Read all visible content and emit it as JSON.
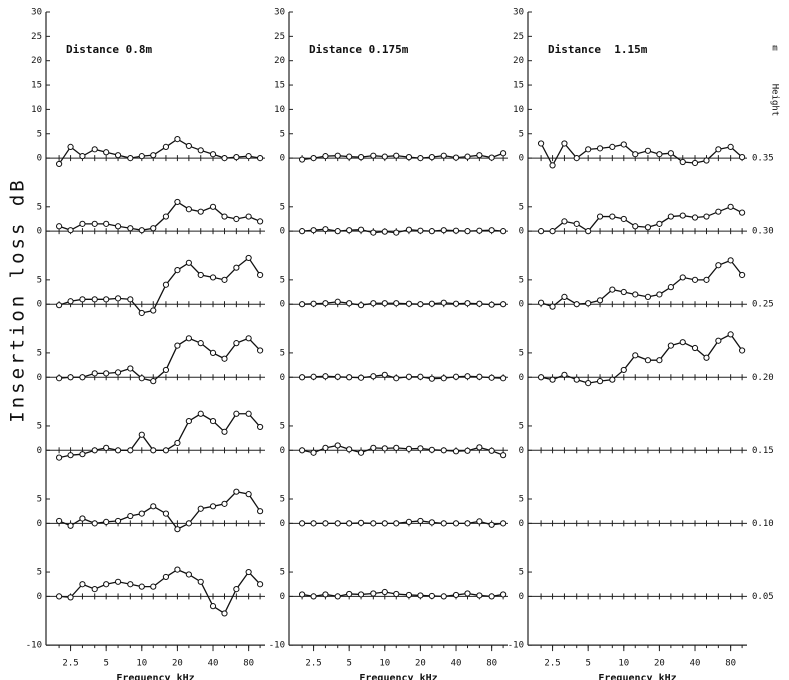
{
  "chart_data": [
    {
      "type": "line",
      "title": "Distance 0.8m",
      "xlabel": "Frequency kHz",
      "ylabel": "Insertion loss dB",
      "log_x": true,
      "x": [
        2,
        2.5,
        3.15,
        4,
        5,
        6.3,
        8,
        10,
        12.5,
        16,
        20,
        25,
        31.5,
        40,
        50,
        63,
        80,
        100
      ],
      "xlim": [
        1.55,
        110
      ],
      "xticks": [
        2.5,
        5,
        10,
        20,
        40,
        80
      ],
      "series": [
        {
          "color": "#111",
          "ylim": [
            -5,
            30
          ],
          "yticks": [
            0,
            5,
            10,
            15,
            20,
            25,
            30
          ],
          "values": [
            -1.2,
            2.3,
            0.4,
            1.8,
            1.2,
            0.6,
            0,
            0.4,
            0.6,
            2.3,
            3.9,
            2.5,
            1.6,
            0.8,
            0,
            0.2,
            0.4,
            0
          ]
        },
        {
          "color": "#111",
          "ylim": [
            -5,
            10
          ],
          "yticks": [
            0,
            5
          ],
          "values": [
            1,
            0.2,
            1.5,
            1.5,
            1.5,
            1,
            0.6,
            0.2,
            0.6,
            3,
            6,
            4.5,
            4,
            5,
            3,
            2.5,
            3,
            2
          ]
        },
        {
          "color": "#111",
          "ylim": [
            -5,
            10
          ],
          "yticks": [
            0,
            5
          ],
          "values": [
            -0.2,
            0.6,
            1,
            1,
            1,
            1.2,
            1,
            -1.8,
            -1.3,
            4,
            7,
            8.5,
            6,
            5.5,
            5,
            7.5,
            9.5,
            6
          ]
        },
        {
          "color": "#111",
          "ylim": [
            -5,
            10
          ],
          "yticks": [
            0,
            5
          ],
          "values": [
            -0.2,
            0,
            0,
            0.8,
            0.8,
            1,
            1.8,
            -0.2,
            -0.8,
            1.5,
            6.5,
            8,
            7,
            5,
            3.8,
            7,
            8,
            5.5
          ]
        },
        {
          "color": "#111",
          "ylim": [
            -5,
            10
          ],
          "yticks": [
            0,
            5
          ],
          "values": [
            -1.5,
            -1,
            -0.8,
            0,
            0.5,
            0,
            0,
            3.2,
            0,
            0,
            1.5,
            6,
            7.5,
            6,
            3.8,
            7.5,
            7.5,
            4.8
          ]
        },
        {
          "color": "#111",
          "ylim": [
            -5,
            10
          ],
          "yticks": [
            0,
            5
          ],
          "values": [
            0.5,
            -0.5,
            1,
            0,
            0.3,
            0.5,
            1.5,
            2,
            3.5,
            2,
            -1.2,
            0,
            3,
            3.5,
            4,
            6.5,
            6,
            2.5
          ]
        },
        {
          "color": "#111",
          "ylim": [
            -10,
            10
          ],
          "yticks": [
            -10,
            0,
            5
          ],
          "values": [
            0,
            -0.2,
            2.5,
            1.5,
            2.5,
            3,
            2.5,
            2,
            2,
            4,
            5.5,
            4.5,
            3,
            -2,
            -3.5,
            1.5,
            5,
            2.5
          ]
        }
      ]
    },
    {
      "type": "line",
      "title": "Distance 0.175m",
      "xlabel": "Frequency kHz",
      "log_x": true,
      "x": [
        2,
        2.5,
        3.15,
        4,
        5,
        6.3,
        8,
        10,
        12.5,
        16,
        20,
        25,
        31.5,
        40,
        50,
        63,
        80,
        100
      ],
      "xlim": [
        1.55,
        110
      ],
      "xticks": [
        2.5,
        5,
        10,
        20,
        40,
        80
      ],
      "series": [
        {
          "color": "#111",
          "ylim": [
            -5,
            30
          ],
          "yticks": [
            0,
            5,
            10,
            15,
            20,
            25,
            30
          ],
          "values": [
            -0.3,
            0,
            0.4,
            0.5,
            0.3,
            0.2,
            0.5,
            0.3,
            0.5,
            0.2,
            0,
            0.2,
            0.5,
            0.1,
            0.3,
            0.6,
            0.1,
            1
          ]
        },
        {
          "color": "#111",
          "ylim": [
            -5,
            10
          ],
          "yticks": [
            0,
            5
          ],
          "values": [
            0,
            0.2,
            0.4,
            0,
            0.2,
            0.3,
            -0.3,
            -0.1,
            -0.3,
            0.3,
            0.1,
            0,
            0.2,
            0.1,
            0,
            0.1,
            0.2,
            0
          ]
        },
        {
          "color": "#111",
          "ylim": [
            -5,
            10
          ],
          "yticks": [
            0,
            5
          ],
          "values": [
            0,
            0.1,
            0.2,
            0.5,
            0.2,
            -0.2,
            0.2,
            0.2,
            0.2,
            0.1,
            0,
            0.1,
            0.3,
            0.1,
            0.2,
            0.1,
            -0.1,
            0
          ]
        },
        {
          "color": "#111",
          "ylim": [
            -5,
            10
          ],
          "yticks": [
            0,
            5
          ],
          "values": [
            0,
            0.1,
            0.2,
            0.1,
            0,
            -0.1,
            0.2,
            0.5,
            -0.2,
            0.1,
            0.1,
            -0.3,
            -0.2,
            0.1,
            0.2,
            0.1,
            -0.1,
            -0.2
          ]
        },
        {
          "color": "#111",
          "ylim": [
            -5,
            10
          ],
          "yticks": [
            0,
            5
          ],
          "values": [
            0,
            -0.5,
            0.5,
            1,
            0.2,
            -0.5,
            0.5,
            0.4,
            0.5,
            0.3,
            0.4,
            0.1,
            0,
            -0.2,
            -0.1,
            0.6,
            -0.1,
            -1
          ]
        },
        {
          "color": "#111",
          "ylim": [
            -5,
            10
          ],
          "yticks": [
            0,
            5
          ],
          "values": [
            0,
            0,
            0,
            0,
            0,
            0.1,
            0,
            0,
            0,
            0.3,
            0.5,
            0.2,
            0,
            0,
            0,
            0.4,
            -0.3,
            0
          ]
        },
        {
          "color": "#111",
          "ylim": [
            -10,
            10
          ],
          "yticks": [
            -10,
            0,
            5
          ],
          "values": [
            0.4,
            0,
            0.4,
            0,
            0.5,
            0.4,
            0.6,
            0.9,
            0.5,
            0.3,
            0.2,
            0.1,
            0,
            0.3,
            0.6,
            0.2,
            0,
            0.4
          ]
        }
      ]
    },
    {
      "type": "line",
      "title": "Distance  1.15m",
      "xlabel": "Frequency kHz",
      "log_x": true,
      "height_label": "Height",
      "height_unit": "m",
      "x": [
        2,
        2.5,
        3.15,
        4,
        5,
        6.3,
        8,
        10,
        12.5,
        16,
        20,
        25,
        31.5,
        40,
        50,
        63,
        80,
        100
      ],
      "xlim": [
        1.55,
        110
      ],
      "xticks": [
        2.5,
        5,
        10,
        20,
        40,
        80
      ],
      "series": [
        {
          "name": "0.35",
          "color": "#111",
          "ylim": [
            -5,
            30
          ],
          "yticks": [
            0,
            5,
            10,
            15,
            20,
            25,
            30
          ],
          "values": [
            3,
            -1.5,
            3,
            0,
            1.8,
            2,
            2.3,
            2.8,
            0.8,
            1.5,
            0.8,
            1,
            -0.8,
            -1,
            -0.5,
            1.8,
            2.3,
            0.2
          ]
        },
        {
          "name": "0.30",
          "color": "#111",
          "ylim": [
            -5,
            10
          ],
          "yticks": [
            0,
            5
          ],
          "values": [
            0,
            0,
            2,
            1.5,
            0,
            3,
            3,
            2.5,
            1,
            0.8,
            1.5,
            3,
            3.2,
            2.8,
            3,
            4,
            5,
            3.8
          ]
        },
        {
          "name": "0.25",
          "color": "#111",
          "ylim": [
            -5,
            10
          ],
          "yticks": [
            0,
            5
          ],
          "values": [
            0.3,
            -0.5,
            1.5,
            0,
            0.2,
            0.8,
            3,
            2.5,
            2,
            1.5,
            2,
            3.5,
            5.5,
            5,
            5,
            8,
            9,
            6
          ]
        },
        {
          "name": "0.20",
          "color": "#111",
          "ylim": [
            -5,
            10
          ],
          "yticks": [
            0,
            5
          ],
          "values": [
            0,
            -0.5,
            0.5,
            -0.5,
            -1.2,
            -0.8,
            -0.5,
            1.5,
            4.5,
            3.5,
            3.5,
            6.5,
            7.2,
            6,
            4,
            7.5,
            8.8,
            5.5
          ]
        },
        {
          "name": "0.15",
          "color": "#111",
          "ylim": [
            -5,
            10
          ],
          "yticks": [
            0,
            5
          ],
          "values": [
            null,
            null,
            null,
            null,
            null,
            null,
            null,
            null,
            null,
            null,
            null,
            null,
            null,
            null,
            null,
            null,
            null,
            null
          ]
        },
        {
          "name": "0.10",
          "color": "#111",
          "ylim": [
            -5,
            10
          ],
          "yticks": [
            0,
            5
          ],
          "values": [
            null,
            null,
            null,
            null,
            null,
            null,
            null,
            null,
            null,
            null,
            null,
            null,
            null,
            null,
            null,
            null,
            null,
            null
          ]
        },
        {
          "name": "0.05",
          "color": "#111",
          "ylim": [
            -10,
            10
          ],
          "yticks": [
            -10,
            0,
            5
          ],
          "values": [
            null,
            null,
            null,
            null,
            null,
            null,
            null,
            null,
            null,
            null,
            null,
            null,
            null,
            null,
            null,
            null,
            null,
            null
          ]
        }
      ]
    }
  ]
}
